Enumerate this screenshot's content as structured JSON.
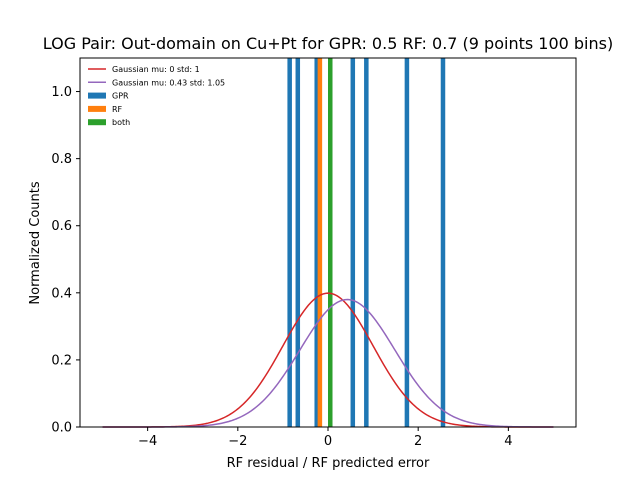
{
  "chart_data": {
    "type": "bar",
    "title": "LOG Pair: Out-domain on Cu+Pt for GPR: 0.5 RF: 0.7 (9 points 100 bins)",
    "xlabel": "RF residual / RF predicted error",
    "ylabel": "Normalized Counts",
    "xlim": [
      -5.5,
      5.5
    ],
    "ylim": [
      0,
      1.1
    ],
    "x_ticks": [
      -4,
      -2,
      0,
      2,
      4
    ],
    "x_tick_labels": [
      "−4",
      "−2",
      "0",
      "2",
      "4"
    ],
    "y_ticks": [
      0.0,
      0.2,
      0.4,
      0.6,
      0.8,
      1.0
    ],
    "y_tick_labels": [
      "0.0",
      "0.2",
      "0.4",
      "0.6",
      "0.8",
      "1.0"
    ],
    "bin_width": 0.1,
    "grid": false,
    "legend_position": "top-left",
    "bars": [
      {
        "series": "GPR",
        "x": -0.85,
        "height": 1.1
      },
      {
        "series": "GPR",
        "x": -0.67,
        "height": 1.1
      },
      {
        "series": "GPR",
        "x": -0.25,
        "height": 1.1
      },
      {
        "series": "RF",
        "x": -0.18,
        "height": 1.1
      },
      {
        "series": "both",
        "x": 0.05,
        "height": 1.1
      },
      {
        "series": "GPR",
        "x": 0.55,
        "height": 1.1
      },
      {
        "series": "GPR",
        "x": 0.85,
        "height": 1.1
      },
      {
        "series": "GPR",
        "x": 1.75,
        "height": 1.1
      },
      {
        "series": "GPR",
        "x": 2.55,
        "height": 1.1
      }
    ],
    "curves": [
      {
        "name": "Gaussian mu: 0 std: 1",
        "mu": 0,
        "std": 1,
        "color": "#d62728",
        "x_range": [
          -5,
          5
        ]
      },
      {
        "name": "Gaussian mu: 0.43 std: 1.05",
        "mu": 0.43,
        "std": 1.05,
        "color": "#9467bd",
        "x_range": [
          -5,
          5
        ]
      }
    ],
    "legend": [
      {
        "label": "Gaussian mu: 0 std: 1",
        "kind": "line",
        "color": "#d62728"
      },
      {
        "label": "Gaussian mu: 0.43 std: 1.05",
        "kind": "line",
        "color": "#9467bd"
      },
      {
        "label": "GPR",
        "kind": "patch",
        "color": "#1f77b4"
      },
      {
        "label": "RF",
        "kind": "patch",
        "color": "#ff7f0e"
      },
      {
        "label": "both",
        "kind": "patch",
        "color": "#2ca02c"
      }
    ],
    "series_colors": {
      "GPR": "#1f77b4",
      "RF": "#ff7f0e",
      "both": "#2ca02c"
    }
  }
}
